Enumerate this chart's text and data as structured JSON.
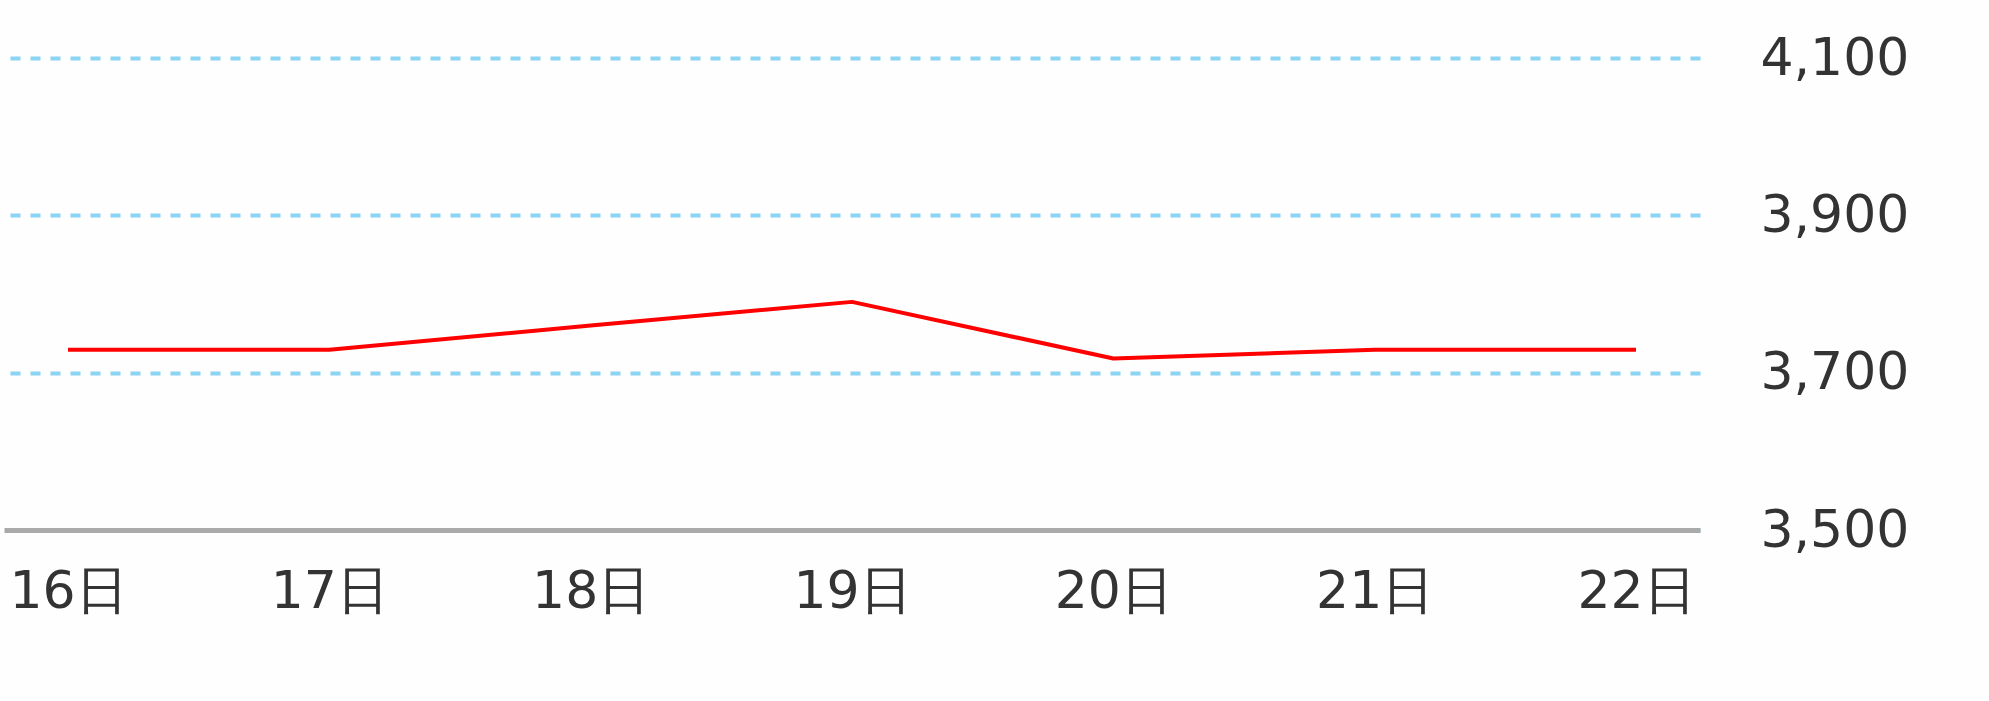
{
  "chart_data": {
    "type": "line",
    "categories": [
      "16日",
      "17日",
      "18日",
      "19日",
      "20日",
      "21日",
      "22日"
    ],
    "series": [
      {
        "color": "#ff0000",
        "values": [
          3729,
          3729,
          3760,
          3790,
          3718,
          3729,
          3729
        ]
      }
    ],
    "ylim": [
      3500,
      4100
    ],
    "yticks": [
      {
        "value": 3500,
        "label": "3,500"
      },
      {
        "value": 3700,
        "label": "3,700"
      },
      {
        "value": 3900,
        "label": "3,900"
      },
      {
        "value": 4100,
        "label": "4,100"
      }
    ],
    "grid": "y",
    "line_style": "solid",
    "marker": "none",
    "legend": false
  }
}
